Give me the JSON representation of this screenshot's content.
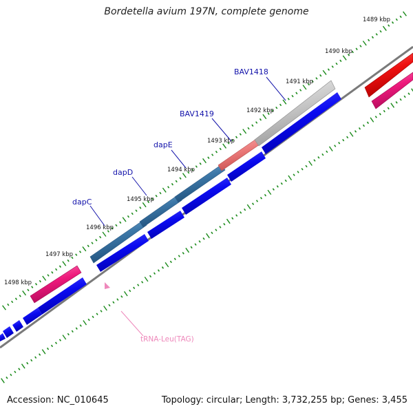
{
  "title": "Bordetella avium 197N, complete genome",
  "footer": {
    "accession": "Accession: NC_010645",
    "summary": "Topology: circular; Length: 3,732,255 bp; Genes: 3,455"
  },
  "colors": {
    "cds_strand": "#0a0af0",
    "highlight_steelblue": "#3d78a8",
    "highlight_gray": "#c8c8c8",
    "highlight_salmon": "#ec7b7b",
    "rrna_pink": "#ee1a7c",
    "red_feature": "#ee1010",
    "tick_green": "#1a8a1a",
    "backbone_gray": "#7a7a7a",
    "trna_pink": "#ee88bb",
    "gene_label_blue": "#1212aa"
  },
  "ruler_labels": [
    "1489 kbp",
    "1490 kbp",
    "1491 kbp",
    "1492 kbp",
    "1493 kbp",
    "1494 kbp",
    "1495 kbp",
    "1496 kbp",
    "1497 kbp",
    "1498 kbp"
  ],
  "gene_labels": [
    {
      "name": "BAV1418"
    },
    {
      "name": "BAV1419"
    },
    {
      "name": "dapE"
    },
    {
      "name": "dapD"
    },
    {
      "name": "dapC"
    }
  ],
  "trna_label": "tRNA-Leu(TAG)"
}
